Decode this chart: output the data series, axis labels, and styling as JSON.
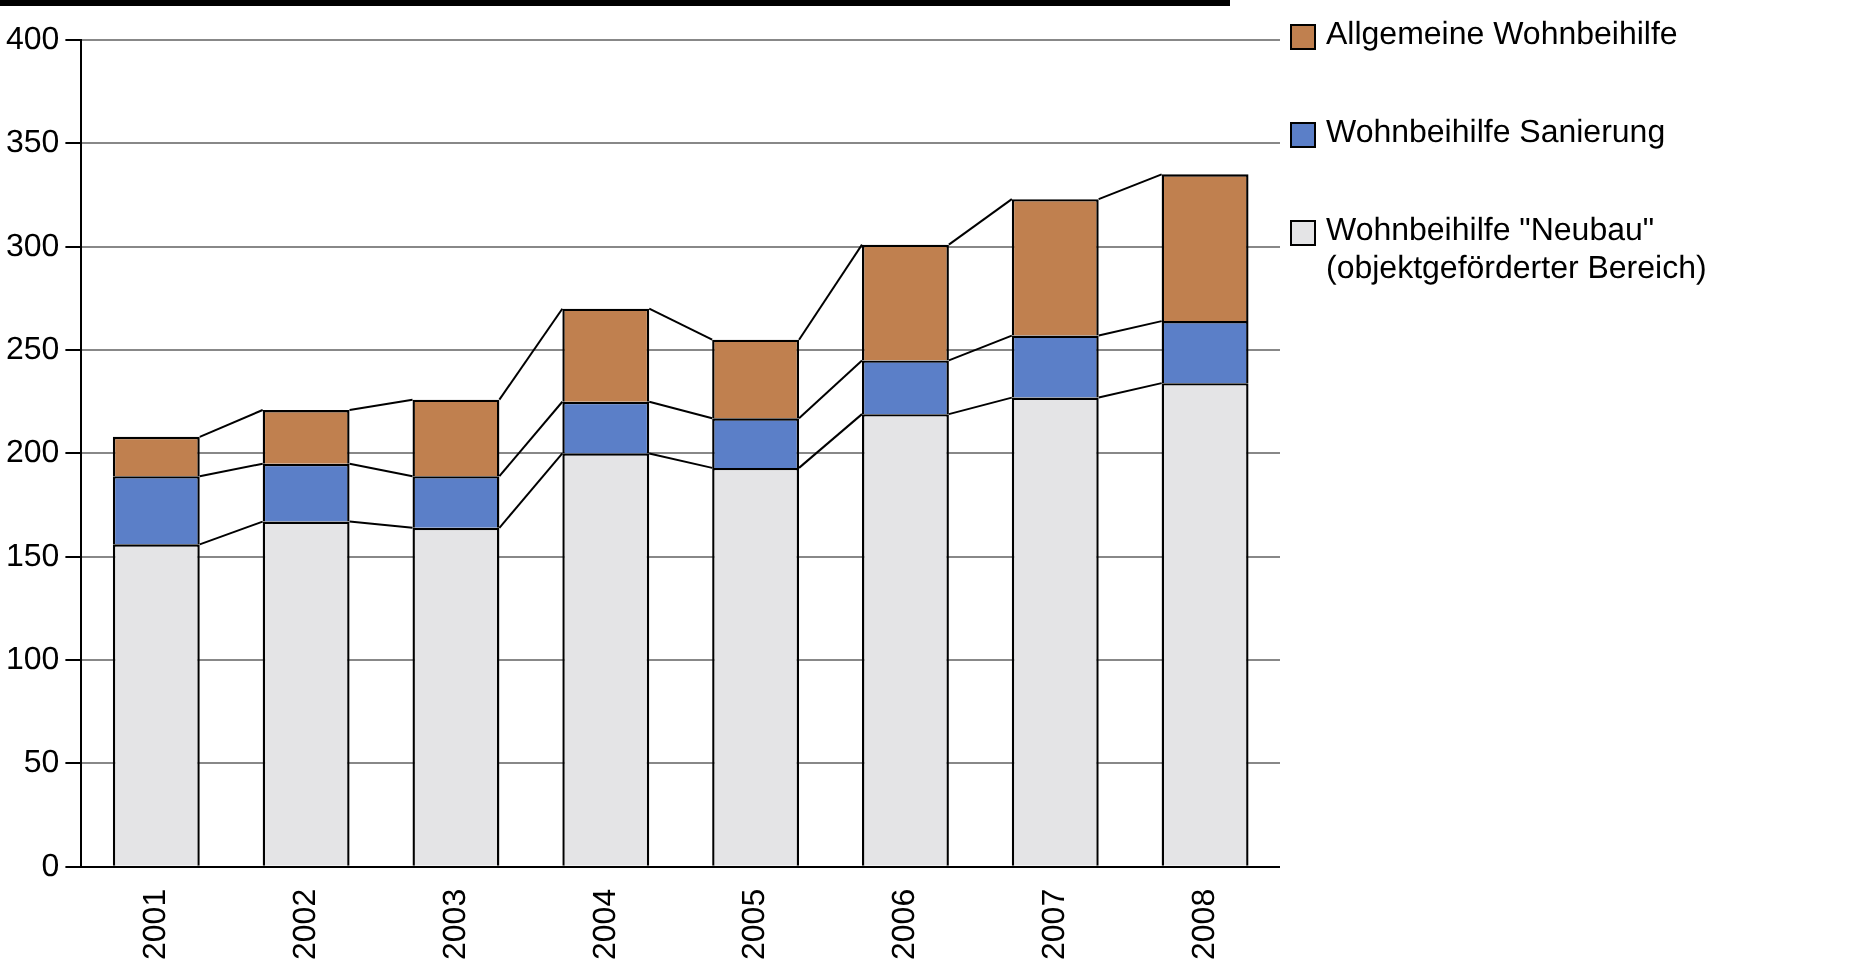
{
  "chart_data": {
    "type": "bar",
    "stacked": true,
    "categories": [
      "2001",
      "2002",
      "2003",
      "2004",
      "2005",
      "2006",
      "2007",
      "2008"
    ],
    "series": [
      {
        "name": "Wohnbeihilfe \"Neubau\" (objektgeförderter Bereich)",
        "color": "#e4e4e6",
        "values": [
          156,
          167,
          164,
          200,
          193,
          219,
          227,
          234
        ]
      },
      {
        "name": "Wohnbeihilfe Sanierung",
        "color": "#5b7fc8",
        "values": [
          33,
          28,
          25,
          25,
          24,
          26,
          30,
          30
        ]
      },
      {
        "name": "Allgemeine Wohnbeihilfe",
        "color": "#c0804f",
        "values": [
          19,
          26,
          37,
          45,
          38,
          56,
          66,
          71
        ]
      }
    ],
    "ylim": [
      0,
      400
    ],
    "yticks": [
      0,
      50,
      100,
      150,
      200,
      250,
      300,
      350,
      400
    ],
    "grid": "y",
    "legend": "right"
  }
}
